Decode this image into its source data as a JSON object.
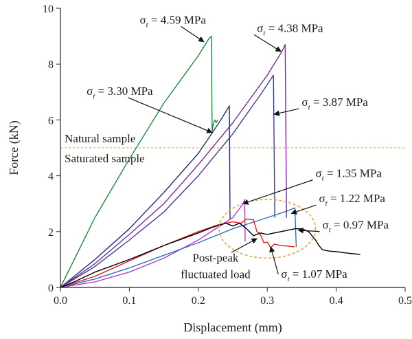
{
  "chart_data": {
    "type": "line",
    "xlabel": "Displacement (mm)",
    "ylabel": "Force (kN)",
    "xlim": [
      0,
      0.5
    ],
    "ylim": [
      0,
      10
    ],
    "xticks": [
      0.0,
      0.1,
      0.2,
      0.3,
      0.4,
      0.5
    ],
    "yticks": [
      0,
      2,
      4,
      6,
      8,
      10
    ],
    "xtick_labels": [
      "0.0",
      "0.1",
      "0.2",
      "0.3",
      "0.4",
      "0.5"
    ],
    "ytick_labels": [
      "0",
      "2",
      "4",
      "6",
      "8",
      "10"
    ],
    "grid": false,
    "divider": {
      "y": 5.0,
      "color": "#f0a868",
      "label_above": "Natural sample",
      "label_below": "Saturated sample"
    },
    "series": [
      {
        "color": "#1a8a3a",
        "points": [
          [
            0,
            0
          ],
          [
            0.05,
            2.5
          ],
          [
            0.1,
            4.6
          ],
          [
            0.15,
            6.6
          ],
          [
            0.2,
            8.3
          ],
          [
            0.215,
            8.9
          ],
          [
            0.219,
            9.0
          ],
          [
            0.22,
            5.6
          ],
          [
            0.222,
            5.9
          ],
          [
            0.224,
            6.0
          ],
          [
            0.226,
            5.9
          ],
          [
            0.228,
            6.0
          ]
        ]
      },
      {
        "color": "#1f2a7a",
        "points": [
          [
            0,
            0
          ],
          [
            0.05,
            1.0
          ],
          [
            0.1,
            2.1
          ],
          [
            0.15,
            3.4
          ],
          [
            0.2,
            4.8
          ],
          [
            0.23,
            5.9
          ],
          [
            0.245,
            6.5
          ],
          [
            0.246,
            2.45
          ]
        ]
      },
      {
        "color": "#7a2a9a",
        "points": [
          [
            0,
            0
          ],
          [
            0.05,
            0.85
          ],
          [
            0.1,
            1.9
          ],
          [
            0.15,
            3.0
          ],
          [
            0.2,
            4.4
          ],
          [
            0.25,
            5.9
          ],
          [
            0.3,
            7.6
          ],
          [
            0.32,
            8.4
          ],
          [
            0.326,
            8.7
          ],
          [
            0.328,
            2.5
          ]
        ]
      },
      {
        "color": "#3a3aa0",
        "points": [
          [
            0,
            0
          ],
          [
            0.05,
            0.75
          ],
          [
            0.1,
            1.7
          ],
          [
            0.15,
            2.7
          ],
          [
            0.2,
            4.0
          ],
          [
            0.25,
            5.5
          ],
          [
            0.29,
            6.9
          ],
          [
            0.305,
            7.45
          ],
          [
            0.309,
            7.6
          ],
          [
            0.311,
            2.5
          ]
        ]
      },
      {
        "color": "#b040c0",
        "points": [
          [
            0,
            0
          ],
          [
            0.05,
            0.2
          ],
          [
            0.1,
            0.55
          ],
          [
            0.15,
            1.05
          ],
          [
            0.2,
            1.7
          ],
          [
            0.25,
            2.5
          ],
          [
            0.265,
            3.0
          ],
          [
            0.267,
            3.15
          ],
          [
            0.268,
            1.65
          ]
        ]
      },
      {
        "color": "#2e6fc0",
        "points": [
          [
            0,
            0
          ],
          [
            0.05,
            0.3
          ],
          [
            0.1,
            0.7
          ],
          [
            0.15,
            1.15
          ],
          [
            0.2,
            1.6
          ],
          [
            0.25,
            2.1
          ],
          [
            0.3,
            2.5
          ],
          [
            0.33,
            2.75
          ],
          [
            0.34,
            2.85
          ],
          [
            0.342,
            1.45
          ]
        ]
      },
      {
        "color": "#e02020",
        "points": [
          [
            0,
            0
          ],
          [
            0.05,
            0.4
          ],
          [
            0.1,
            0.95
          ],
          [
            0.15,
            1.5
          ],
          [
            0.2,
            2.0
          ],
          [
            0.23,
            2.25
          ],
          [
            0.25,
            2.35
          ],
          [
            0.262,
            2.3
          ],
          [
            0.27,
            2.45
          ],
          [
            0.28,
            2.42
          ],
          [
            0.285,
            2.0
          ],
          [
            0.29,
            1.9
          ],
          [
            0.295,
            1.6
          ],
          [
            0.3,
            1.62
          ],
          [
            0.305,
            1.42
          ],
          [
            0.31,
            1.55
          ],
          [
            0.32,
            1.5
          ],
          [
            0.33,
            1.48
          ],
          [
            0.34,
            1.45
          ]
        ]
      },
      {
        "color": "#000000",
        "points": [
          [
            0,
            0
          ],
          [
            0.02,
            0.2
          ],
          [
            0.05,
            0.55
          ],
          [
            0.1,
            1.0
          ],
          [
            0.15,
            1.5
          ],
          [
            0.2,
            1.95
          ],
          [
            0.22,
            2.15
          ],
          [
            0.24,
            2.3
          ],
          [
            0.25,
            2.2
          ],
          [
            0.26,
            2.3
          ],
          [
            0.27,
            2.1
          ],
          [
            0.28,
            1.85
          ],
          [
            0.29,
            1.95
          ],
          [
            0.3,
            1.9
          ],
          [
            0.31,
            1.95
          ],
          [
            0.32,
            2.0
          ],
          [
            0.33,
            2.05
          ],
          [
            0.34,
            2.1
          ],
          [
            0.35,
            2.1
          ],
          [
            0.36,
            2.0
          ],
          [
            0.365,
            1.85
          ],
          [
            0.37,
            1.7
          ],
          [
            0.375,
            1.5
          ],
          [
            0.38,
            1.35
          ],
          [
            0.39,
            1.3
          ],
          [
            0.4,
            1.28
          ],
          [
            0.41,
            1.25
          ],
          [
            0.42,
            1.22
          ],
          [
            0.435,
            1.18
          ]
        ]
      }
    ],
    "annotations": [
      {
        "text": "4.59 MPa",
        "x": 0.115,
        "y": 9.45,
        "arrow_to": [
          0.208,
          8.8
        ]
      },
      {
        "text": "4.38 MPa",
        "x": 0.285,
        "y": 9.15,
        "arrow_to": [
          0.32,
          8.45
        ]
      },
      {
        "text": "3.30 MPa",
        "x": 0.038,
        "y": 6.9,
        "arrow_to": [
          0.22,
          5.55
        ]
      },
      {
        "text": "3.87 MPa",
        "x": 0.35,
        "y": 6.5,
        "arrow_to": [
          0.31,
          6.2
        ]
      },
      {
        "text": "1.35 MPa",
        "x": 0.37,
        "y": 3.95,
        "arrow_to": [
          0.265,
          3.0
        ]
      },
      {
        "text": "1.22 MPa",
        "x": 0.375,
        "y": 3.05,
        "arrow_to": [
          0.335,
          2.65
        ]
      },
      {
        "text": "0.97 MPa",
        "x": 0.38,
        "y": 2.1,
        "arrow_to": [
          0.345,
          2.05
        ]
      },
      {
        "text": "1.07 MPa",
        "x": 0.32,
        "y": 0.35,
        "arrow_to": [
          0.305,
          1.45
        ]
      }
    ],
    "sigma": "σ",
    "sigma_sub": "t",
    "callout": {
      "line1": "Post-peak",
      "line2": "fluctuated load",
      "ellipse_center": [
        0.3,
        2.1
      ],
      "ellipse_rx": 0.07,
      "ellipse_ry": 1.05,
      "arrow_from": [
        0.248,
        1.25
      ],
      "arrow_to": [
        0.285,
        1.75
      ]
    }
  }
}
